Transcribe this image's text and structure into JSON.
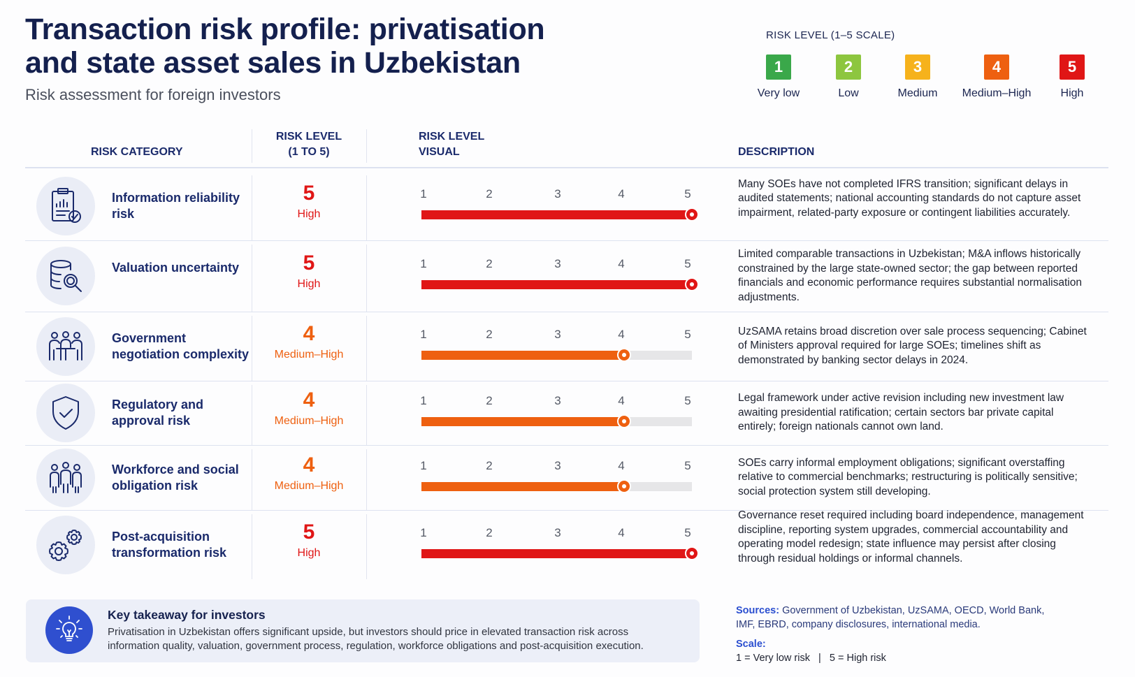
{
  "title": "Transaction risk profile: privatisation and state asset sales in Uzbekistan",
  "subtitle": "Risk assessment for foreign investors",
  "legend": {
    "title": "RISK LEVEL (1–5 SCALE)",
    "items": [
      {
        "value": "1",
        "label": "Very low",
        "color": "#3aa84a"
      },
      {
        "value": "2",
        "label": "Low",
        "color": "#8dc63f"
      },
      {
        "value": "3",
        "label": "Medium",
        "color": "#f6b21c"
      },
      {
        "value": "4",
        "label": "Medium–High",
        "color": "#ee6010"
      },
      {
        "value": "5",
        "label": "High",
        "color": "#e01616"
      }
    ]
  },
  "headers": {
    "category": "RISK CATEGORY",
    "level_1": "RISK LEVEL",
    "level_2": "(1 TO 5)",
    "visual_1": "RISK LEVEL",
    "visual_2": "VISUAL",
    "description": "DESCRIPTION"
  },
  "scale_ticks": [
    "1",
    "2",
    "3",
    "4",
    "5"
  ],
  "rows": [
    {
      "icon": "clipboard-chart-icon",
      "category": "Information reliability risk",
      "level": 5,
      "level_text": "5",
      "level_label": "High",
      "color": "#e01616",
      "description": "Many SOEs have not completed IFRS transition; significant delays in audited statements; national accounting standards do not capture asset impairment, related-party exposure or contingent liabilities accurately."
    },
    {
      "icon": "database-search-icon",
      "category": "Valuation uncertainty",
      "level": 5,
      "level_text": "5",
      "level_label": "High",
      "color": "#e01616",
      "description": "Limited comparable transactions in Uzbekistan; M&A inflows historically constrained by the large state-owned sector; the gap between reported financials and economic performance requires substantial normalisation adjustments."
    },
    {
      "icon": "meeting-people-icon",
      "category": "Government negotiation complexity",
      "level": 4,
      "level_text": "4",
      "level_label": "Medium–High",
      "color": "#ee6010",
      "description": "UzSAMA retains broad discretion over sale process sequencing; Cabinet of Ministers approval required for large SOEs; timelines shift as demonstrated by banking sector delays in 2024."
    },
    {
      "icon": "shield-check-icon",
      "category": "Regulatory and approval risk",
      "level": 4,
      "level_text": "4",
      "level_label": "Medium–High",
      "color": "#ee6010",
      "description": "Legal framework under active revision including new investment law awaiting presidential ratification; certain sectors bar private capital entirely; foreign nationals cannot own land."
    },
    {
      "icon": "workforce-icon",
      "category": "Workforce and social obligation risk",
      "level": 4,
      "level_text": "4",
      "level_label": "Medium–High",
      "color": "#ee6010",
      "description": "SOEs carry informal employment obligations; significant overstaffing relative to commercial benchmarks; restructuring is politically sensitive; social protection system still developing."
    },
    {
      "icon": "gears-icon",
      "category": "Post-acquisition transformation risk",
      "level": 5,
      "level_text": "5",
      "level_label": "High",
      "color": "#e01616",
      "description": "Governance reset required including board independence, management discipline, reporting system upgrades, commercial accountability and operating model redesign; state influence may persist after closing through residual holdings or informal channels."
    }
  ],
  "takeaway": {
    "icon": "lightbulb-icon",
    "title": "Key takeaway for investors",
    "text": "Privatisation in Uzbekistan offers significant upside, but investors should price in elevated transaction risk across information quality, valuation, government process, regulation, workforce obligations and post-acquisition execution."
  },
  "sources": {
    "label": "Sources:",
    "text": "Government of Uzbekistan, UzSAMA, OECD, World Bank, IMF, EBRD, company disclosures, international media."
  },
  "scale": {
    "label": "Scale:",
    "text": "1 = Very low risk   |   5 = High risk"
  }
}
